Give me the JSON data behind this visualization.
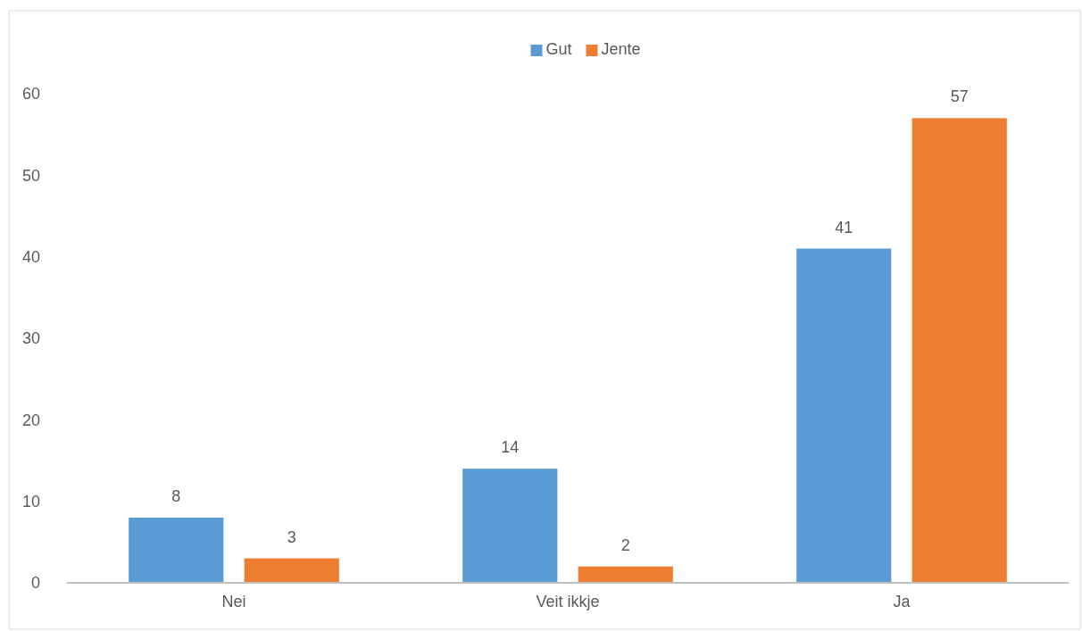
{
  "chart_data": {
    "type": "bar",
    "categories": [
      "Nei",
      "Veit ikkje",
      "Ja"
    ],
    "series": [
      {
        "name": "Gut",
        "color": "#5b9bd5",
        "values": [
          8,
          14,
          41
        ]
      },
      {
        "name": "Jente",
        "color": "#ed7d31",
        "values": [
          3,
          2,
          57
        ]
      }
    ],
    "ylim": [
      0,
      60
    ],
    "yticks": [
      0,
      10,
      20,
      30,
      40,
      50,
      60
    ],
    "grid": false,
    "legend": "top",
    "data_labels": true
  }
}
